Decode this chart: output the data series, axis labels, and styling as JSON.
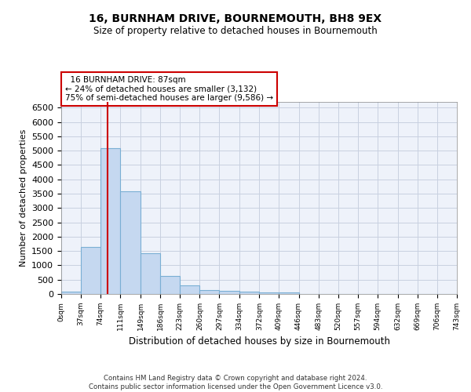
{
  "title1": "16, BURNHAM DRIVE, BOURNEMOUTH, BH8 9EX",
  "title2": "Size of property relative to detached houses in Bournemouth",
  "xlabel": "Distribution of detached houses by size in Bournemouth",
  "ylabel": "Number of detached properties",
  "footnote1": "Contains HM Land Registry data © Crown copyright and database right 2024.",
  "footnote2": "Contains public sector information licensed under the Open Government Licence v3.0.",
  "annotation_line1": "16 BURNHAM DRIVE: 87sqm",
  "annotation_line2": "← 24% of detached houses are smaller (3,132)",
  "annotation_line3": "75% of semi-detached houses are larger (9,586) →",
  "bar_color": "#c5d8f0",
  "bar_edge_color": "#7aafd4",
  "vline_color": "#cc0000",
  "vline_x": 87,
  "bin_edges": [
    0,
    37,
    74,
    111,
    149,
    186,
    223,
    260,
    297,
    334,
    372,
    409,
    446,
    483,
    520,
    557,
    594,
    632,
    669,
    706,
    743
  ],
  "bin_labels": [
    "0sqm",
    "37sqm",
    "74sqm",
    "111sqm",
    "149sqm",
    "186sqm",
    "223sqm",
    "260sqm",
    "297sqm",
    "334sqm",
    "372sqm",
    "409sqm",
    "446sqm",
    "483sqm",
    "520sqm",
    "557sqm",
    "594sqm",
    "632sqm",
    "669sqm",
    "706sqm",
    "743sqm"
  ],
  "bar_heights": [
    75,
    1630,
    5080,
    3590,
    1410,
    620,
    290,
    140,
    105,
    75,
    50,
    55,
    0,
    0,
    0,
    0,
    0,
    0,
    0,
    0
  ],
  "ylim": [
    0,
    6700
  ],
  "xlim": [
    0,
    743
  ],
  "yticks": [
    0,
    500,
    1000,
    1500,
    2000,
    2500,
    3000,
    3500,
    4000,
    4500,
    5000,
    5500,
    6000,
    6500
  ],
  "grid_color": "#c8d0e0",
  "background_color": "#eef2fa"
}
